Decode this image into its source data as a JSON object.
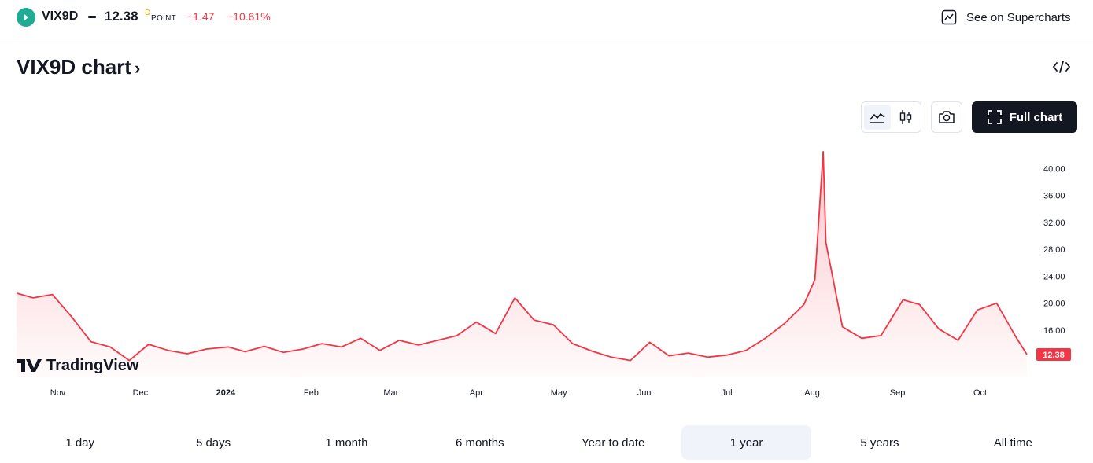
{
  "header": {
    "symbol": "VIX9D",
    "price": "12.38",
    "price_flag": "D",
    "unit": "POINT",
    "change": "−1.47",
    "change_pct": "−10.61%",
    "supercharts_label": "See on Supercharts"
  },
  "title": {
    "text": "VIX9D chart",
    "chevron": "›"
  },
  "toolbar": {
    "full_chart_label": "Full chart",
    "chart_style_active": "line"
  },
  "branding": {
    "tv_logo_text": "TradingView"
  },
  "colors": {
    "line": "#f23645",
    "accent_dark": "#131722",
    "positive_icon": "#22ab94"
  },
  "ranges": [
    {
      "label": "1 day",
      "active": false
    },
    {
      "label": "5 days",
      "active": false
    },
    {
      "label": "1 month",
      "active": false
    },
    {
      "label": "6 months",
      "active": false
    },
    {
      "label": "Year to date",
      "active": false
    },
    {
      "label": "1 year",
      "active": true
    },
    {
      "label": "5 years",
      "active": false
    },
    {
      "label": "All time",
      "active": false
    }
  ],
  "chart_data": {
    "type": "area",
    "x_tick_labels": [
      "Nov",
      "Dec",
      "2024",
      "Feb",
      "Mar",
      "Apr",
      "May",
      "Jun",
      "Jul",
      "Aug",
      "Sep",
      "Oct"
    ],
    "y_tick_labels": [
      "16.00",
      "20.00",
      "24.00",
      "28.00",
      "32.00",
      "36.00",
      "40.00"
    ],
    "ylim": [
      9,
      44
    ],
    "last_value_label": "12.38",
    "grid": false,
    "x": [
      "2023-10-17",
      "2023-10-23",
      "2023-10-30",
      "2023-11-06",
      "2023-11-13",
      "2023-11-20",
      "2023-11-27",
      "2023-12-04",
      "2023-12-11",
      "2023-12-18",
      "2023-12-25",
      "2024-01-02",
      "2024-01-08",
      "2024-01-15",
      "2024-01-22",
      "2024-01-29",
      "2024-02-05",
      "2024-02-12",
      "2024-02-19",
      "2024-02-26",
      "2024-03-04",
      "2024-03-11",
      "2024-03-18",
      "2024-03-25",
      "2024-04-01",
      "2024-04-08",
      "2024-04-15",
      "2024-04-22",
      "2024-04-29",
      "2024-05-06",
      "2024-05-13",
      "2024-05-20",
      "2024-05-27",
      "2024-06-03",
      "2024-06-10",
      "2024-06-17",
      "2024-06-24",
      "2024-07-01",
      "2024-07-08",
      "2024-07-15",
      "2024-07-22",
      "2024-07-29",
      "2024-08-02",
      "2024-08-05",
      "2024-08-06",
      "2024-08-12",
      "2024-08-19",
      "2024-08-26",
      "2024-09-03",
      "2024-09-09",
      "2024-09-16",
      "2024-09-23",
      "2024-09-30",
      "2024-10-07",
      "2024-10-14",
      "2024-10-18"
    ],
    "series": [
      {
        "values": [
          21.5,
          20.8,
          21.3,
          18.0,
          14.3,
          13.5,
          11.5,
          13.9,
          13.0,
          12.5,
          13.2,
          13.5,
          12.8,
          13.6,
          12.7,
          13.2,
          14.0,
          13.5,
          14.8,
          13.0,
          14.5,
          13.8,
          14.5,
          15.2,
          17.2,
          15.5,
          20.8,
          17.5,
          16.8,
          14.0,
          12.9,
          12.0,
          11.5,
          14.2,
          12.2,
          12.6,
          12.0,
          12.3,
          13.0,
          14.8,
          17.0,
          19.8,
          23.5,
          42.5,
          29.0,
          16.5,
          14.8,
          15.2,
          20.5,
          19.8,
          16.2,
          14.5,
          19.0,
          20.0,
          15.0,
          12.38
        ]
      }
    ]
  }
}
